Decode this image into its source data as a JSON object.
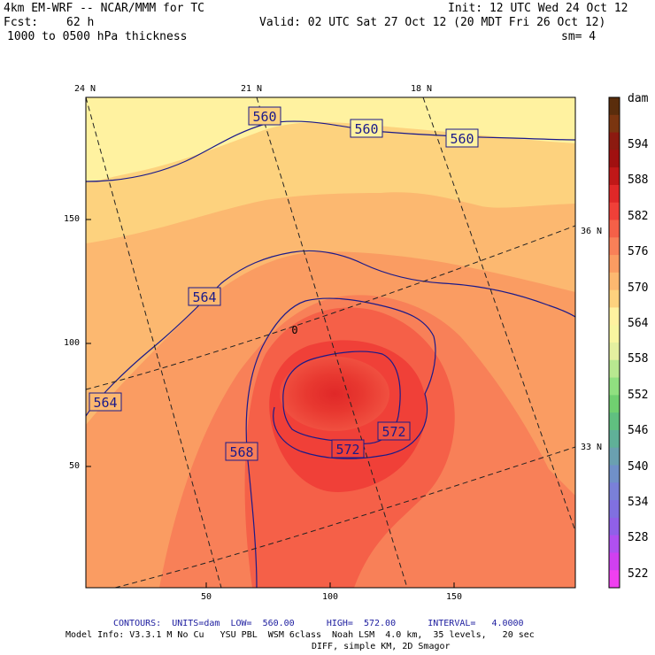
{
  "header": {
    "model": "4km EM-WRF -- NCAR/MMM for TC",
    "init": "Init: 12 UTC Wed 24 Oct 12",
    "fcst_label": "Fcst:",
    "fcst_value": "62 h",
    "valid": "Valid: 02 UTC Sat 27 Oct 12 (20 MDT Fri 26 Oct 12)",
    "field": "1000 to 0500 hPa thickness",
    "smoothing": "sm= 4"
  },
  "map": {
    "lat_labels_top": [
      "24 N",
      "21 N",
      "18 N"
    ],
    "lat_labels_right": [
      "36 N",
      "33 N"
    ],
    "y_ticks": [
      "150",
      "100",
      "50"
    ],
    "x_ticks": [
      "50",
      "100",
      "150"
    ],
    "contour_labels": [
      "560",
      "560",
      "560",
      "564",
      "564",
      "568",
      "572",
      "572"
    ],
    "center_mark": "0"
  },
  "colorbar": {
    "unit": "dam",
    "labels": [
      "594",
      "588",
      "582",
      "576",
      "570",
      "564",
      "558",
      "552",
      "546",
      "540",
      "534",
      "528",
      "522"
    ],
    "colors": [
      "#5a2d0c",
      "#7a3510",
      "#8c1a10",
      "#a01010",
      "#c01818",
      "#e02828",
      "#f04038",
      "#f56048",
      "#f88058",
      "#fa9c62",
      "#fcb870",
      "#fdd27e",
      "#fff2a0",
      "#f8f6a0",
      "#e4f0a0",
      "#b8e890",
      "#90e080",
      "#70d070",
      "#60c080",
      "#60b098",
      "#6aa0b0",
      "#7090c8",
      "#7a80d8",
      "#8070e0",
      "#9060e8",
      "#b050f0",
      "#d040f0",
      "#f040f0"
    ]
  },
  "footer": {
    "contours_line": "CONTOURS:  UNITS=dam  LOW=  560.00      HIGH=  572.00      INTERVAL=   4.0000",
    "model_info": "Model Info: V3.3.1 M No Cu   YSU PBL  WSM 6class  Noah LSM  4.0 km,  35 levels,   20 sec",
    "model_info_2": "DIFF, simple KM, 2D Smagor"
  }
}
